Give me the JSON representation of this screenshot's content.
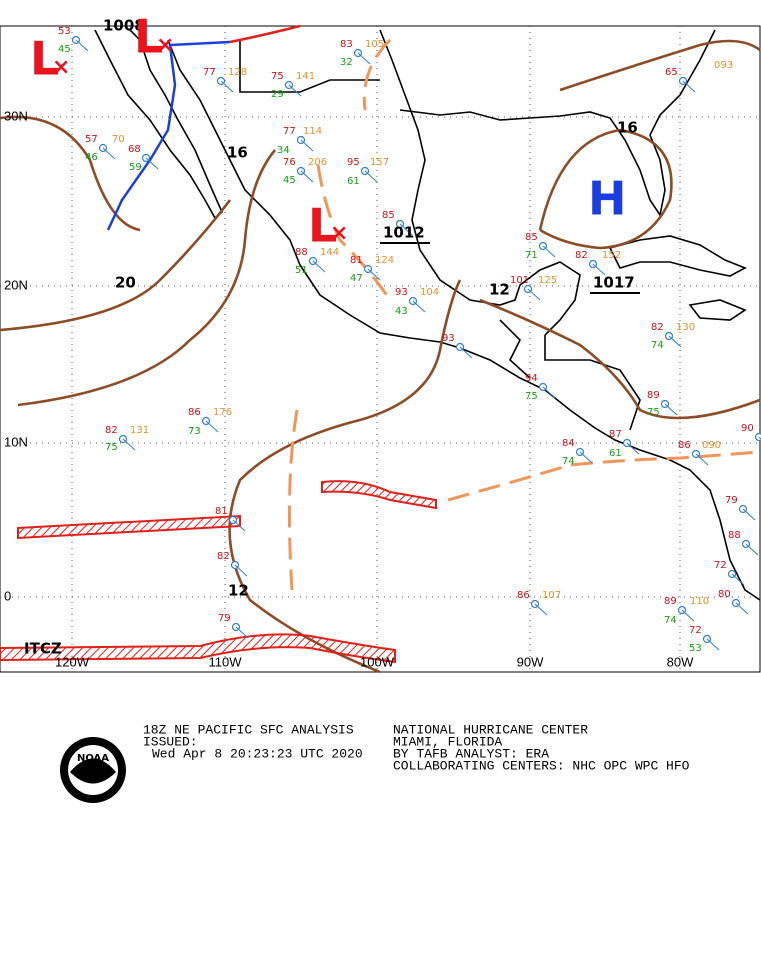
{
  "map": {
    "lat_labels": [
      "30N",
      "20N",
      "10N",
      "0"
    ],
    "lon_labels": [
      "120W",
      "110W",
      "100W",
      "90W",
      "80W"
    ],
    "isobar_labels": [
      "1008",
      "16",
      "20",
      "12",
      "12",
      "16",
      "1012",
      "1017"
    ],
    "centers": [
      "L",
      "L",
      "L",
      "H"
    ],
    "features": [
      "ITCZ"
    ],
    "stations": [
      "77",
      "114",
      "34",
      "76",
      "206",
      "45",
      "95",
      "157",
      "61",
      "85",
      "88",
      "144",
      "51",
      "81",
      "124",
      "47",
      "93",
      "104",
      "43",
      "82",
      "131",
      "75",
      "86",
      "176",
      "73",
      "81",
      "82",
      "79",
      "85",
      "71",
      "82",
      "152",
      "101",
      "125",
      "93",
      "94",
      "75",
      "82",
      "130",
      "74",
      "89",
      "75",
      "87",
      "61",
      "84",
      "74",
      "86",
      "090",
      "90",
      "79",
      "88",
      "72",
      "80",
      "89",
      "110",
      "74",
      "72",
      "53",
      "86",
      "107",
      "65",
      "093",
      "83",
      "105",
      "32",
      "77",
      "128",
      "75",
      "141",
      "29",
      "53",
      "45",
      "57",
      "70",
      "46",
      "68",
      "59"
    ]
  },
  "footer": {
    "title": "18Z NE PACIFIC SFC ANALYSIS",
    "issued": "ISSUED:",
    "time": "Wed Apr  8 20:23:23 UTC 2020",
    "center": "NATIONAL HURRICANE CENTER",
    "location": "MIAMI, FLORIDA",
    "analyst": "BY TAFB ANALYST: ERA",
    "collab": "COLLABORATING CENTERS: NHC OPC WPC HFO",
    "logo": "NOAA"
  }
}
